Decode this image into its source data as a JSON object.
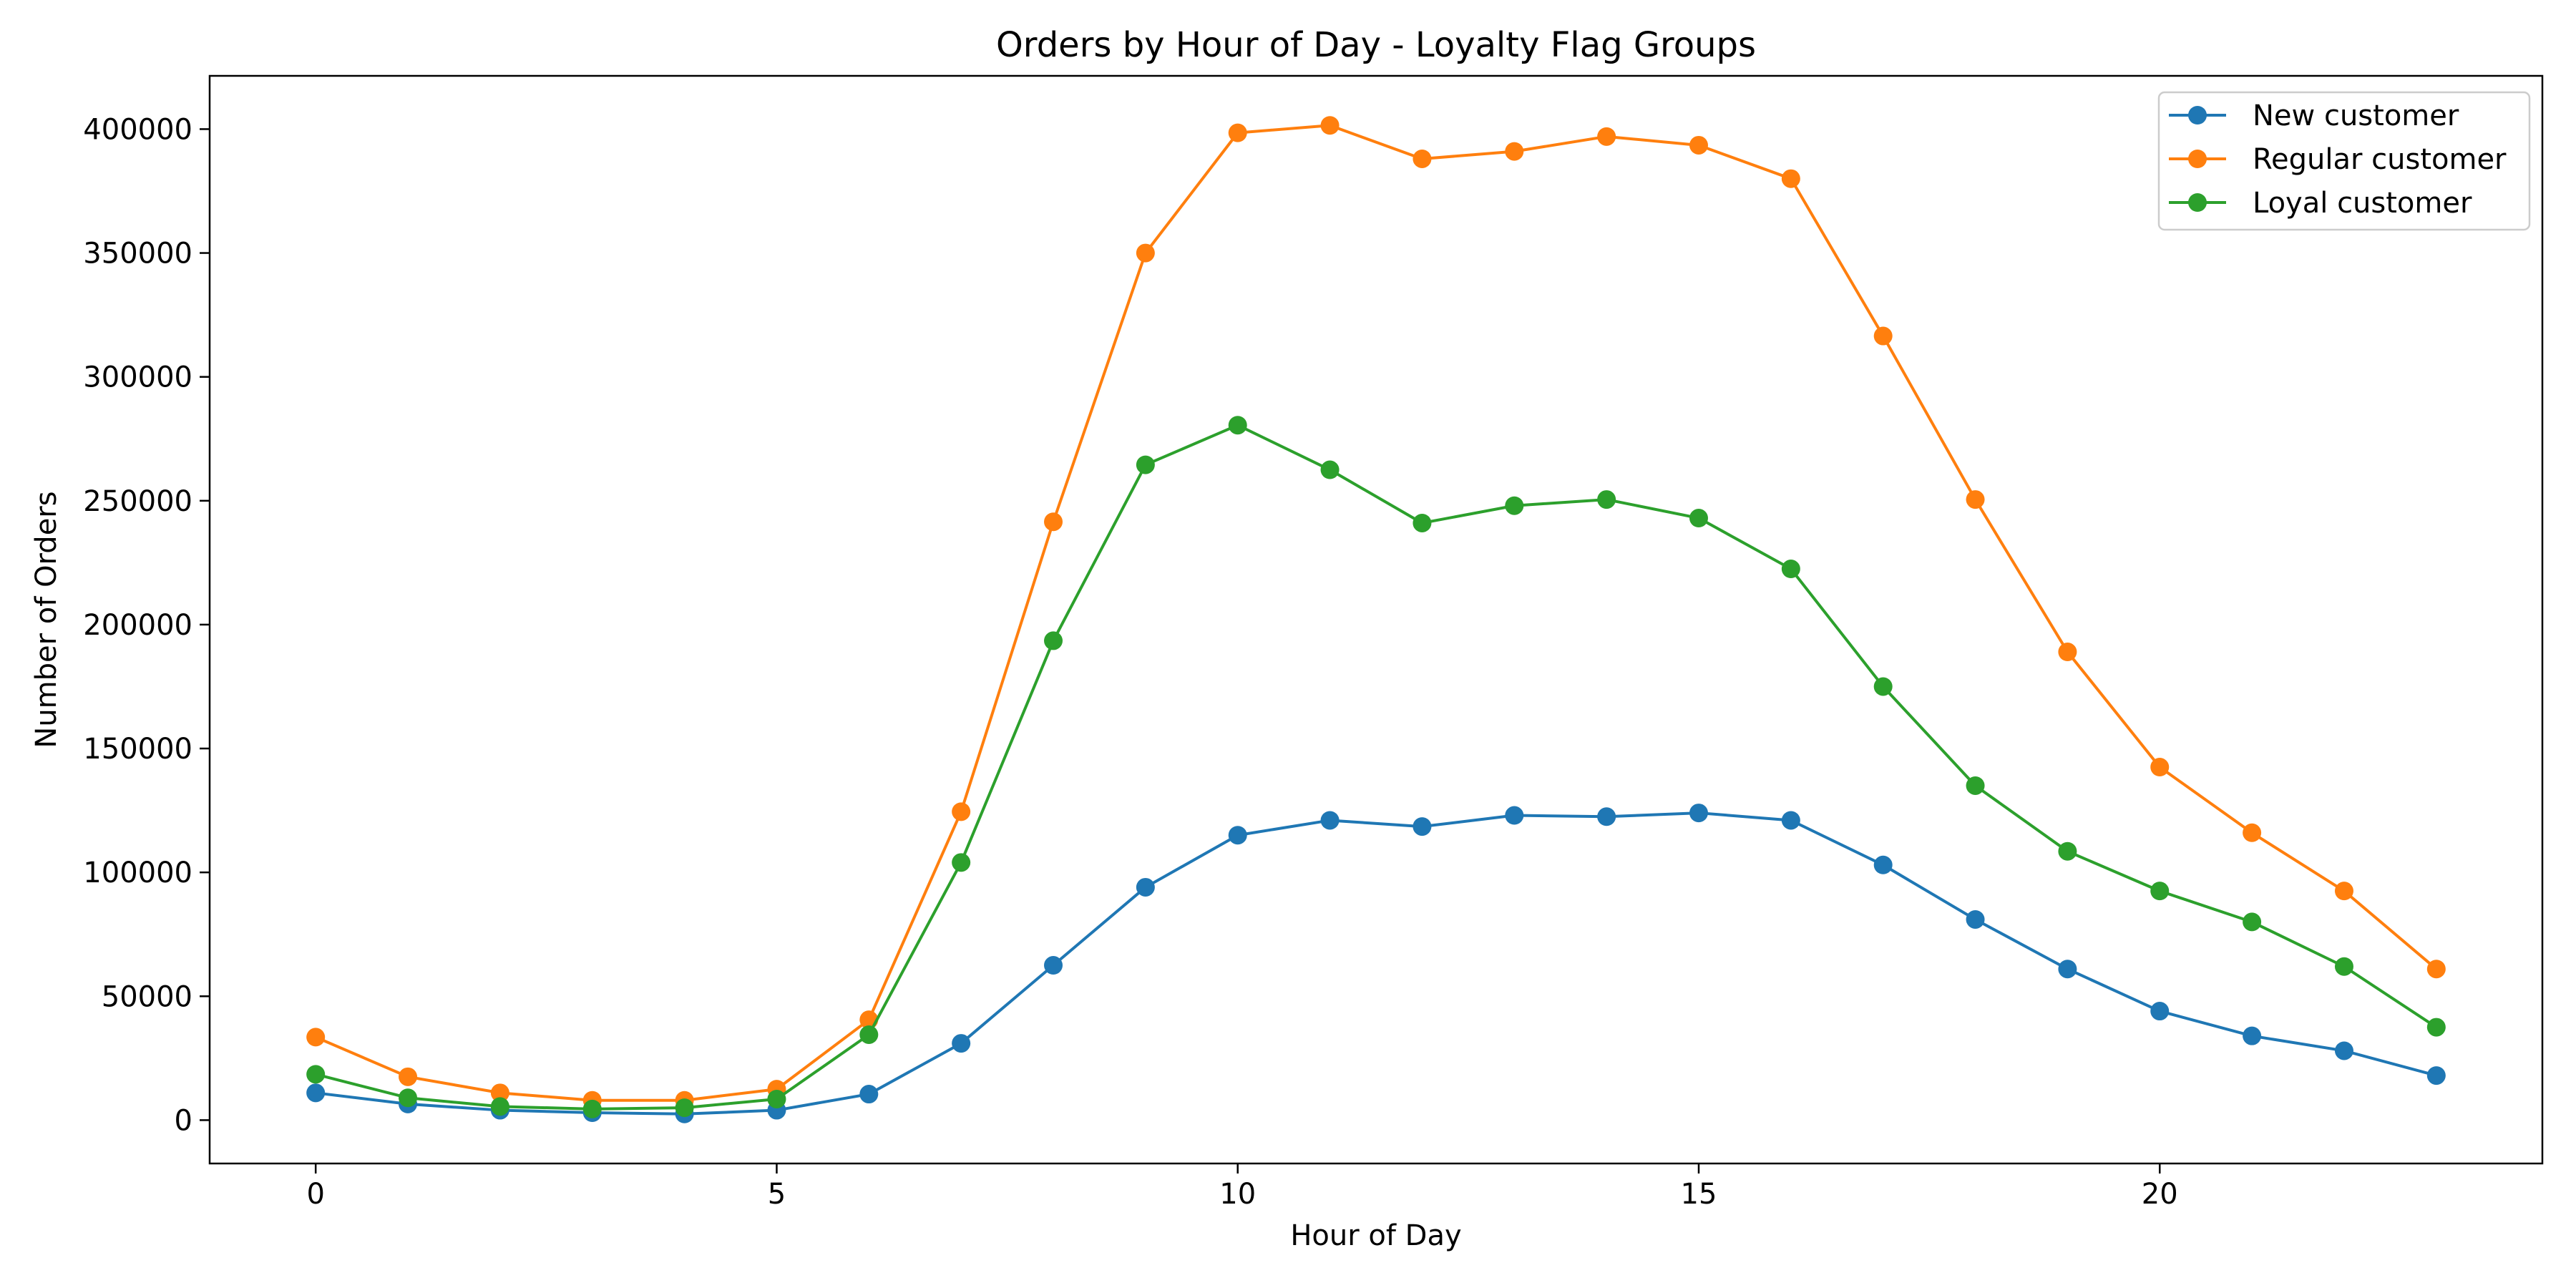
{
  "chart_data": {
    "type": "line",
    "title": "Orders by Hour of Day - Loyalty Flag Groups",
    "xlabel": "Hour of Day",
    "ylabel": "Number of Orders",
    "x": [
      0,
      1,
      2,
      3,
      4,
      5,
      6,
      7,
      8,
      9,
      10,
      11,
      12,
      13,
      14,
      15,
      16,
      17,
      18,
      19,
      20,
      21,
      22,
      23
    ],
    "xlim": [
      -1.15,
      24.15
    ],
    "ylim": [
      -17500,
      421500
    ],
    "xticks": [
      0,
      5,
      10,
      15,
      20
    ],
    "yticks": [
      0,
      50000,
      100000,
      150000,
      200000,
      250000,
      300000,
      350000,
      400000
    ],
    "grid": false,
    "legend_position": "top-right",
    "series": [
      {
        "name": "New customer",
        "color": "#1f77b4",
        "marker": "circle",
        "values": [
          11000,
          6500,
          4000,
          3000,
          2500,
          4000,
          10500,
          31000,
          62500,
          94000,
          115000,
          121000,
          118500,
          123000,
          122500,
          124000,
          121000,
          103000,
          81000,
          61000,
          44000,
          34000,
          28000,
          18000
        ]
      },
      {
        "name": "Regular customer",
        "color": "#ff7f0e",
        "marker": "circle",
        "values": [
          33500,
          17500,
          11000,
          8000,
          8000,
          12500,
          40500,
          124500,
          241500,
          350000,
          398500,
          401500,
          388000,
          391000,
          397000,
          393500,
          380000,
          316500,
          250500,
          189000,
          142500,
          116000,
          92500,
          61000
        ]
      },
      {
        "name": "Loyal customer",
        "color": "#2ca02c",
        "marker": "circle",
        "values": [
          18500,
          9000,
          5500,
          4500,
          5000,
          8500,
          34500,
          104000,
          193500,
          264500,
          280500,
          262500,
          241000,
          248000,
          250500,
          243000,
          222500,
          175000,
          135000,
          108500,
          92500,
          80000,
          62000,
          37500
        ]
      }
    ]
  }
}
